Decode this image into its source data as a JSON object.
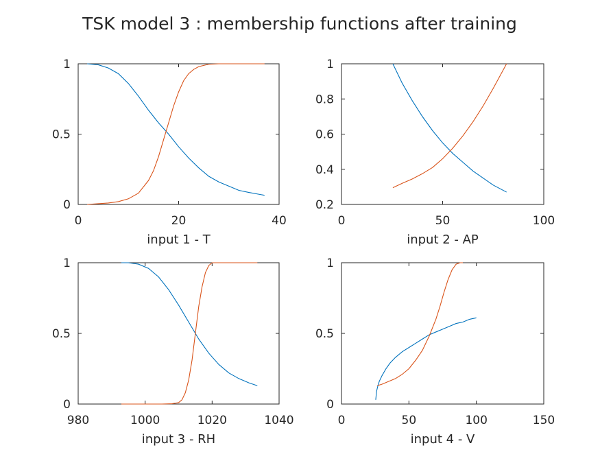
{
  "figure_title": "TSK model 3 : membership functions after training",
  "colors": {
    "mf1": "#0072BD",
    "mf2": "#D95319",
    "axis": "#262626"
  },
  "chart_data": [
    {
      "type": "line",
      "xlabel": "input 1 - T",
      "xlim": [
        0,
        40
      ],
      "ylim": [
        0,
        1
      ],
      "xticks": [
        0,
        20,
        40
      ],
      "yticks": [
        0,
        0.5,
        1
      ],
      "xtick_labels": [
        "0",
        "20",
        "40"
      ],
      "ytick_labels": [
        "0",
        "0.5",
        "1"
      ],
      "series": [
        {
          "x": [
            1.8,
            4,
            6,
            8,
            10,
            12,
            14,
            16,
            18,
            20,
            22,
            24,
            26,
            28,
            30,
            32,
            34,
            37.1
          ],
          "y": [
            1.0,
            0.993,
            0.97,
            0.93,
            0.86,
            0.77,
            0.67,
            0.58,
            0.5,
            0.41,
            0.33,
            0.26,
            0.2,
            0.16,
            0.13,
            0.1,
            0.085,
            0.065
          ]
        },
        {
          "x": [
            1.8,
            4,
            6,
            8,
            10,
            12,
            14,
            15,
            16,
            17,
            18,
            19,
            20,
            21,
            22,
            23,
            24,
            26,
            28,
            37.1
          ],
          "y": [
            0.0,
            0.005,
            0.01,
            0.02,
            0.04,
            0.08,
            0.17,
            0.24,
            0.34,
            0.46,
            0.58,
            0.7,
            0.8,
            0.88,
            0.93,
            0.96,
            0.98,
            0.997,
            1.0,
            1.0
          ]
        }
      ]
    },
    {
      "type": "line",
      "xlabel": "input 2 - AP",
      "xlim": [
        0,
        100
      ],
      "ylim": [
        0.2,
        1
      ],
      "xticks": [
        0,
        50,
        100
      ],
      "yticks": [
        0.2,
        0.4,
        0.6,
        0.8,
        1
      ],
      "xtick_labels": [
        "0",
        "50",
        "100"
      ],
      "ytick_labels": [
        "0.2",
        "0.4",
        "0.6",
        "0.8",
        "1"
      ],
      "series": [
        {
          "x": [
            25.4,
            30,
            35,
            40,
            45,
            50,
            55,
            60,
            65,
            70,
            75,
            81.6
          ],
          "y": [
            1.0,
            0.89,
            0.79,
            0.7,
            0.62,
            0.55,
            0.49,
            0.44,
            0.39,
            0.35,
            0.31,
            0.27
          ]
        },
        {
          "x": [
            25.4,
            30,
            35,
            40,
            45,
            50,
            55,
            60,
            65,
            70,
            75,
            81.6
          ],
          "y": [
            0.295,
            0.32,
            0.345,
            0.375,
            0.41,
            0.46,
            0.52,
            0.59,
            0.67,
            0.76,
            0.86,
            1.0
          ]
        }
      ]
    },
    {
      "type": "line",
      "xlabel": "input 3 - RH",
      "xlim": [
        980,
        1040
      ],
      "ylim": [
        0,
        1
      ],
      "xticks": [
        980,
        1000,
        1020,
        1040
      ],
      "yticks": [
        0,
        0.5,
        1
      ],
      "xtick_labels": [
        "980",
        "1000",
        "1020",
        "1040"
      ],
      "ytick_labels": [
        "0",
        "0.5",
        "1"
      ],
      "series": [
        {
          "x": [
            992.9,
            995,
            998,
            1001,
            1004,
            1007,
            1010,
            1013,
            1016,
            1019,
            1022,
            1025,
            1028,
            1031,
            1033.5
          ],
          "y": [
            1.0,
            1.0,
            0.99,
            0.96,
            0.9,
            0.81,
            0.7,
            0.58,
            0.46,
            0.36,
            0.28,
            0.22,
            0.18,
            0.15,
            0.13
          ]
        },
        {
          "x": [
            992.9,
            1005,
            1008,
            1010,
            1011,
            1012,
            1013,
            1014,
            1015,
            1016,
            1017,
            1018,
            1019,
            1020,
            1033.5
          ],
          "y": [
            0.0,
            0.0,
            0.002,
            0.01,
            0.03,
            0.08,
            0.17,
            0.31,
            0.5,
            0.69,
            0.83,
            0.93,
            0.98,
            1.0,
            1.0
          ]
        }
      ]
    },
    {
      "type": "line",
      "xlabel": "input 4 - V",
      "xlim": [
        0,
        150
      ],
      "ylim": [
        0,
        1
      ],
      "xticks": [
        0,
        50,
        100,
        150
      ],
      "yticks": [
        0,
        0.5,
        1
      ],
      "xtick_labels": [
        "0",
        "50",
        "100",
        "150"
      ],
      "ytick_labels": [
        "0",
        "0.5",
        "1"
      ],
      "series": [
        {
          "x": [
            25.4,
            26,
            27,
            28,
            30,
            33,
            36,
            40,
            45,
            50,
            55,
            60,
            65,
            70,
            75,
            80,
            85,
            90,
            95,
            100
          ],
          "y": [
            0.03,
            0.09,
            0.13,
            0.16,
            0.2,
            0.25,
            0.29,
            0.33,
            0.37,
            0.4,
            0.43,
            0.46,
            0.49,
            0.51,
            0.53,
            0.55,
            0.57,
            0.58,
            0.6,
            0.61
          ]
        },
        {
          "x": [
            26.5,
            30,
            35,
            40,
            45,
            50,
            55,
            60,
            65,
            70,
            73,
            76,
            79,
            82,
            85,
            88,
            90
          ],
          "y": [
            0.13,
            0.14,
            0.16,
            0.18,
            0.21,
            0.25,
            0.31,
            0.38,
            0.48,
            0.6,
            0.69,
            0.79,
            0.88,
            0.95,
            0.99,
            1.0,
            1.0
          ]
        }
      ]
    }
  ]
}
